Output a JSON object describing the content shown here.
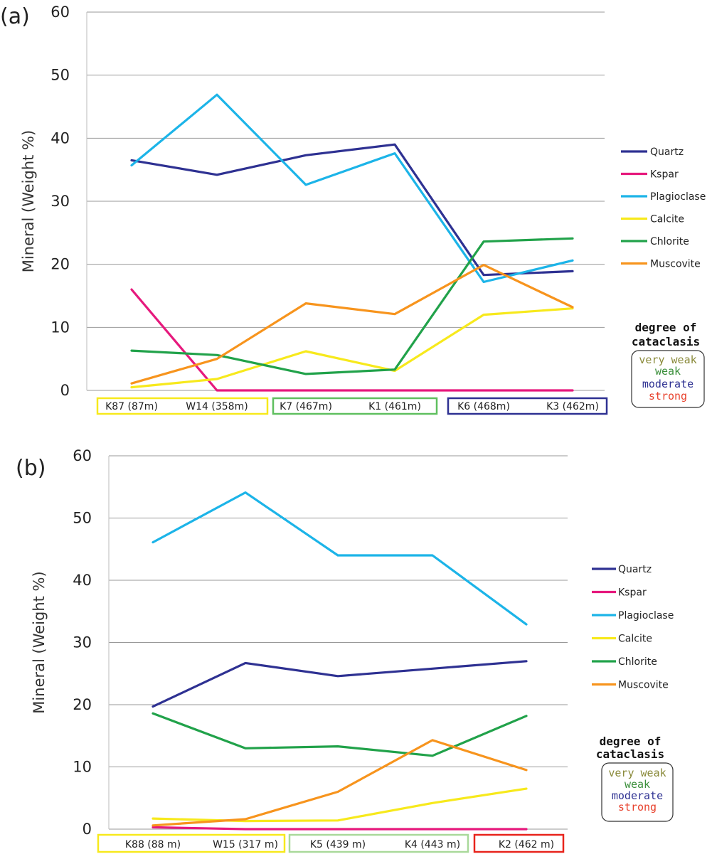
{
  "colors": {
    "Quartz": "#2e3192",
    "Kspar": "#e6197d",
    "Plagioclase": "#1cb4e8",
    "Calcite": "#f7e91c",
    "Chlorite": "#21a24a",
    "Muscovite": "#f7941d",
    "grid": "#999999"
  },
  "degree_legend": {
    "title_line1": "degree of",
    "title_line2": "cataclasis",
    "items": [
      {
        "label": "very weak",
        "color": "#8a8a3a"
      },
      {
        "label": "weak",
        "color": "#3b8f3b"
      },
      {
        "label": "moderate",
        "color": "#2e3192"
      },
      {
        "label": "strong",
        "color": "#e8412c"
      }
    ]
  },
  "chart_data": [
    {
      "panel_label": "(a)",
      "type": "line",
      "ylabel": "Mineral (Weight %)",
      "ylim": [
        0,
        60
      ],
      "yticks": [
        0,
        10,
        20,
        30,
        40,
        50,
        60
      ],
      "grid": true,
      "legend_position": "right",
      "categories": [
        "K87 (87m)",
        "W14 (358m)",
        "K7 (467m)",
        "K1 (461m)",
        "K6 (468m)",
        "K3 (462m)"
      ],
      "category_groups": [
        {
          "labels": [
            "K87 (87m)",
            "W14 (358m)"
          ],
          "color": "#f7e91c",
          "degree": "very weak"
        },
        {
          "labels": [
            "K7 (467m)",
            "K1 (461m)"
          ],
          "color": "#5fbf5f",
          "degree": "weak"
        },
        {
          "labels": [
            "K6 (468m)",
            "K3 (462m)"
          ],
          "color": "#2e3192",
          "degree": "moderate"
        }
      ],
      "series": [
        {
          "name": "Quartz",
          "values": [
            36.5,
            34.2,
            37.3,
            39.0,
            18.3,
            18.9
          ]
        },
        {
          "name": "Kspar",
          "values": [
            16.0,
            0.0,
            0.0,
            0.0,
            0.0,
            0.0
          ]
        },
        {
          "name": "Plagioclase",
          "values": [
            35.7,
            46.9,
            32.6,
            37.6,
            17.2,
            20.6
          ]
        },
        {
          "name": "Calcite",
          "values": [
            0.5,
            1.8,
            6.2,
            3.1,
            12.0,
            13.0
          ]
        },
        {
          "name": "Chlorite",
          "values": [
            6.3,
            5.6,
            2.6,
            3.3,
            23.6,
            24.1
          ]
        },
        {
          "name": "Muscovite",
          "values": [
            1.1,
            5.0,
            13.8,
            12.1,
            19.9,
            13.2
          ]
        }
      ]
    },
    {
      "panel_label": "(b)",
      "type": "line",
      "ylabel": "Mineral (Weight %)",
      "ylim": [
        0,
        60
      ],
      "yticks": [
        0,
        10,
        20,
        30,
        40,
        50,
        60
      ],
      "grid": true,
      "legend_position": "right",
      "categories": [
        "K88 (88 m)",
        "W15 (317 m)",
        "K5  (439 m)",
        "K4 (443 m)",
        "K2 (462 m)"
      ],
      "category_groups": [
        {
          "labels": [
            "K88 (88 m)",
            "W15 (317 m)"
          ],
          "color": "#f7e91c",
          "degree": "very weak"
        },
        {
          "labels": [
            "K5  (439 m)",
            "K4 (443 m)"
          ],
          "color": "#a9d99a",
          "degree": "weak"
        },
        {
          "labels": [
            "K2 (462 m)"
          ],
          "color": "#e8241c",
          "degree": "strong"
        }
      ],
      "series": [
        {
          "name": "Quartz",
          "values": [
            19.7,
            26.7,
            24.6,
            25.8,
            27.0
          ]
        },
        {
          "name": "Kspar",
          "values": [
            0.3,
            0.0,
            0.0,
            0.0,
            0.0
          ]
        },
        {
          "name": "Plagioclase",
          "values": [
            46.1,
            54.1,
            44.0,
            44.0,
            32.9
          ]
        },
        {
          "name": "Calcite",
          "values": [
            1.7,
            1.3,
            1.4,
            4.2,
            6.5
          ]
        },
        {
          "name": "Chlorite",
          "values": [
            18.6,
            13.0,
            13.3,
            11.8,
            18.2
          ]
        },
        {
          "name": "Muscovite",
          "values": [
            0.6,
            1.6,
            6.0,
            14.3,
            9.5
          ]
        }
      ]
    }
  ]
}
